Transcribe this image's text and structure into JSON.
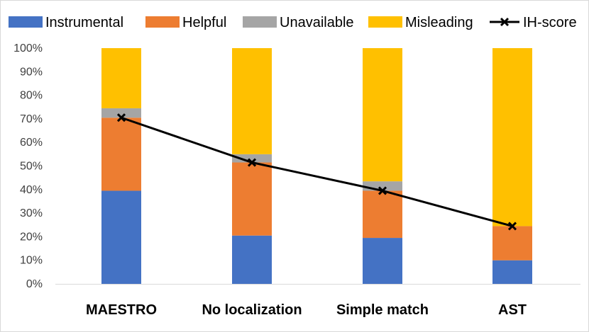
{
  "chart_data": {
    "type": "bar",
    "stacked": true,
    "categories": [
      "MAESTRO",
      "No localization",
      "Simple match",
      "AST"
    ],
    "series": [
      {
        "name": "Instrumental",
        "color": "#4472C4",
        "values": [
          39.5,
          20.5,
          19.5,
          10
        ]
      },
      {
        "name": "Helpful",
        "color": "#ED7D31",
        "values": [
          31,
          31,
          20,
          14.5
        ]
      },
      {
        "name": "Unavailable",
        "color": "#A5A5A5",
        "values": [
          4,
          3.5,
          4,
          0
        ]
      },
      {
        "name": "Misleading",
        "color": "#FFC000",
        "values": [
          25.5,
          45,
          56.5,
          75.5
        ]
      }
    ],
    "line_series": {
      "name": "IH-score",
      "color": "#000000",
      "marker": "x",
      "values": [
        70.5,
        51.5,
        39.5,
        24.5
      ]
    },
    "yticks": [
      "0%",
      "10%",
      "20%",
      "30%",
      "40%",
      "50%",
      "60%",
      "70%",
      "80%",
      "90%",
      "100%"
    ],
    "ylim": [
      0,
      100
    ],
    "grid": false,
    "legend_position": "top"
  }
}
